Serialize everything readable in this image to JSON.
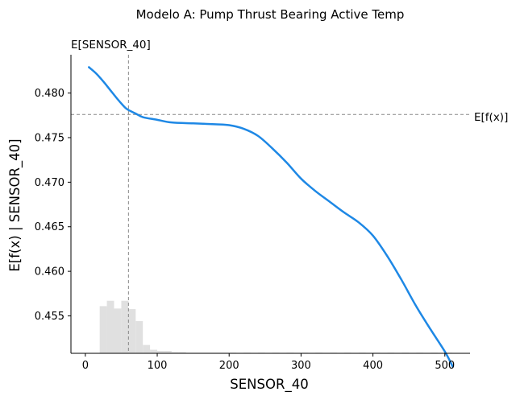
{
  "chart_data": {
    "type": "line",
    "title": "Modelo A: Pump Thrust Bearing Active Temp",
    "xlabel": "SENSOR_40",
    "ylabel": "E[f(x) | SENSOR_40]",
    "xlim": [
      -20,
      535
    ],
    "ylim": [
      0.4508,
      0.4843
    ],
    "x_ticks": [
      0,
      100,
      200,
      300,
      400,
      500
    ],
    "y_ticks": [
      0.455,
      0.46,
      0.465,
      0.47,
      0.475,
      0.48
    ],
    "y_tick_labels": [
      "0.455",
      "0.460",
      "0.465",
      "0.470",
      "0.475",
      "0.480"
    ],
    "grid": false,
    "series": [
      {
        "color": "#1e88e5",
        "x": [
          5,
          15,
          25,
          35,
          45,
          55,
          60,
          70,
          80,
          100,
          120,
          150,
          180,
          200,
          220,
          240,
          260,
          280,
          300,
          320,
          340,
          360,
          380,
          400,
          420,
          440,
          460,
          480,
          500,
          511
        ],
        "y": [
          0.4829,
          0.4822,
          0.4813,
          0.4803,
          0.4793,
          0.4784,
          0.4781,
          0.4777,
          0.4773,
          0.477,
          0.4767,
          0.4766,
          0.4765,
          0.4764,
          0.476,
          0.4752,
          0.4738,
          0.4722,
          0.4704,
          0.469,
          0.4678,
          0.4666,
          0.4655,
          0.464,
          0.4617,
          0.459,
          0.4561,
          0.4535,
          0.451,
          0.4493
        ]
      }
    ],
    "reference_lines": {
      "vertical": {
        "x": 60,
        "label": "E[SENSOR_40]"
      },
      "horizontal": {
        "y": 0.4776,
        "label": "E[f(x)]"
      }
    },
    "histogram": {
      "color": "#e0e0e0",
      "bin_width": 10,
      "x": [
        20,
        30,
        40,
        50,
        60,
        70,
        80,
        90,
        100,
        110,
        120,
        130,
        140,
        150,
        160,
        170,
        180,
        190,
        200,
        220,
        240,
        260,
        280,
        300,
        320,
        340,
        360,
        380,
        400,
        420,
        440,
        460,
        480,
        500
      ],
      "heights": [
        0.79,
        0.88,
        0.75,
        0.88,
        0.74,
        0.54,
        0.14,
        0.06,
        0.04,
        0.04,
        0.02,
        0.02,
        0.01,
        0.01,
        0.01,
        0.01,
        0.01,
        0.01,
        0.01,
        0.01,
        0.01,
        0.01,
        0.01,
        0.01,
        0.01,
        0.01,
        0.01,
        0.01,
        0.01,
        0.01,
        0.01,
        0.01,
        0.01,
        0.01
      ]
    }
  }
}
